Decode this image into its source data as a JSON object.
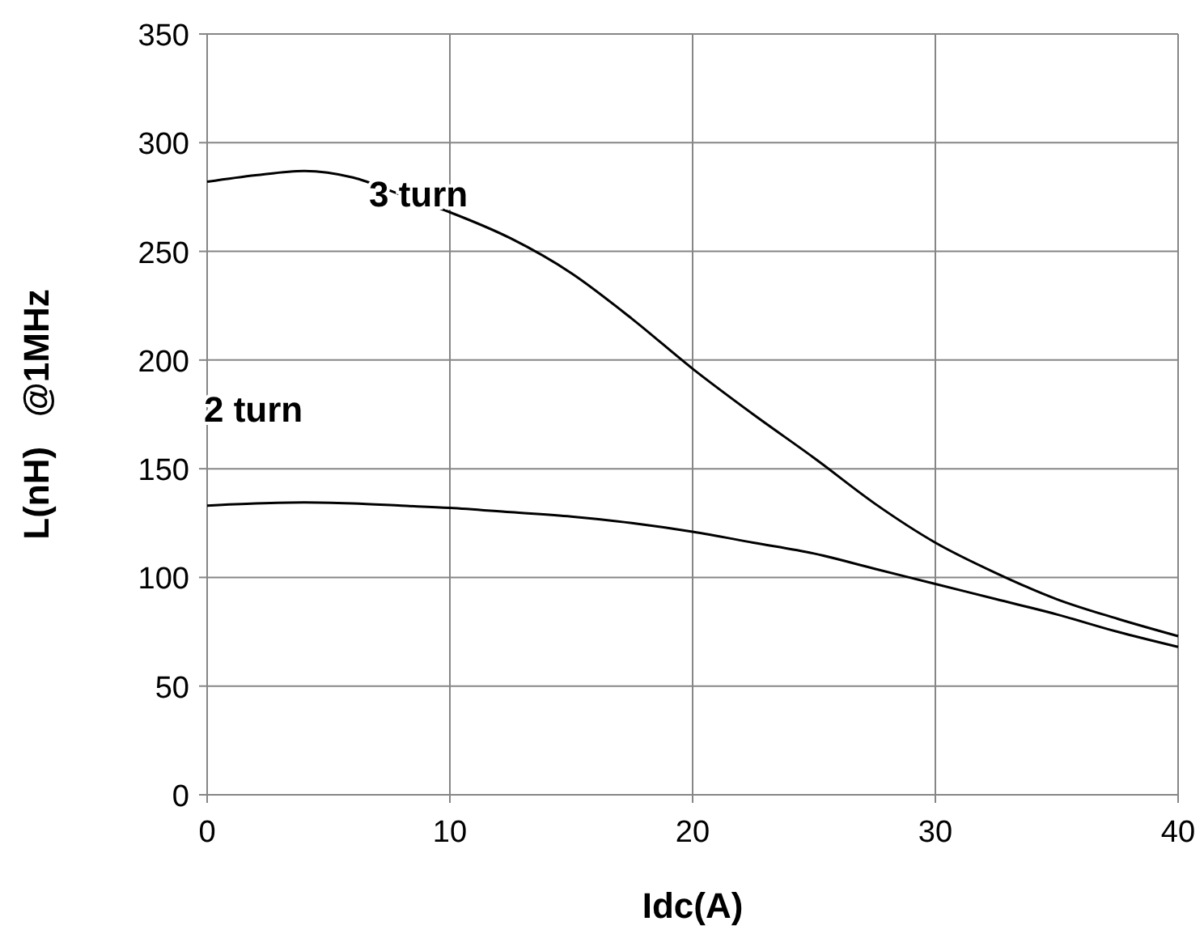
{
  "chart_data": {
    "type": "line",
    "xlabel": "Idc(A)",
    "ylabel": "L(nH)   @1MHz",
    "xlim": [
      0,
      40
    ],
    "ylim": [
      0,
      350
    ],
    "xticks": [
      0,
      10,
      20,
      30,
      40
    ],
    "yticks": [
      0,
      50,
      100,
      150,
      200,
      250,
      300,
      350
    ],
    "grid": true,
    "marker": "none",
    "line_style": "solid",
    "x": [
      0,
      2,
      4,
      6,
      8,
      10,
      12.5,
      15,
      17.5,
      20,
      22.5,
      25,
      27.5,
      30,
      32.5,
      35,
      37.5,
      40
    ],
    "series": [
      {
        "name": "3 turn",
        "color": "#000000",
        "values": [
          282,
          285,
          287,
          284,
          276,
          268,
          256,
          240,
          219,
          196,
          175,
          155,
          134,
          116,
          102,
          90,
          81,
          73
        ]
      },
      {
        "name": "2 turn",
        "color": "#000000",
        "values": [
          133,
          134,
          134.5,
          134,
          133,
          132,
          130,
          128,
          125,
          121,
          116,
          111,
          104,
          97,
          90,
          83,
          75,
          68
        ]
      }
    ]
  }
}
